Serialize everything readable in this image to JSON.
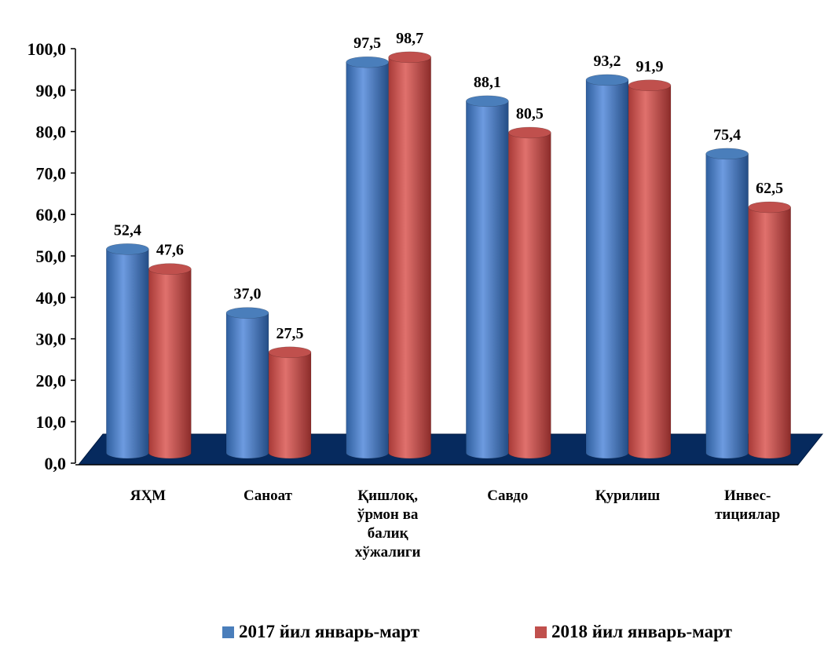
{
  "chart_data": {
    "type": "bar",
    "title": "",
    "xlabel": "",
    "ylabel": "",
    "ylim": [
      0,
      100
    ],
    "yticks": [
      "0,0",
      "10,0",
      "20,0",
      "30,0",
      "40,0",
      "50,0",
      "60,0",
      "70,0",
      "80,0",
      "90,0",
      "100,0"
    ],
    "categories": [
      [
        "ЯҲМ"
      ],
      [
        "Саноат"
      ],
      [
        "Қишлоқ,",
        "ўрмон ва",
        "балиқ",
        "хўжалиги"
      ],
      [
        "Савдо"
      ],
      [
        "Қурилиш"
      ],
      [
        "Инвес-",
        "тициялар"
      ]
    ],
    "series": [
      {
        "name": "2017 йил январь-март",
        "color": "#4a7ebb",
        "values": [
          52.4,
          37.0,
          97.5,
          88.1,
          93.2,
          75.4
        ],
        "labels": [
          "52,4",
          "37,0",
          "97,5",
          "88,1",
          "93,2",
          "75,4"
        ]
      },
      {
        "name": "2018 йил январь-март",
        "color": "#c0504d",
        "values": [
          47.6,
          27.5,
          98.7,
          80.5,
          91.9,
          62.5
        ],
        "labels": [
          "47,6",
          "27,5",
          "98,7",
          "80,5",
          "91,9",
          "62,5"
        ]
      }
    ],
    "legend_position": "bottom",
    "grid": false
  }
}
